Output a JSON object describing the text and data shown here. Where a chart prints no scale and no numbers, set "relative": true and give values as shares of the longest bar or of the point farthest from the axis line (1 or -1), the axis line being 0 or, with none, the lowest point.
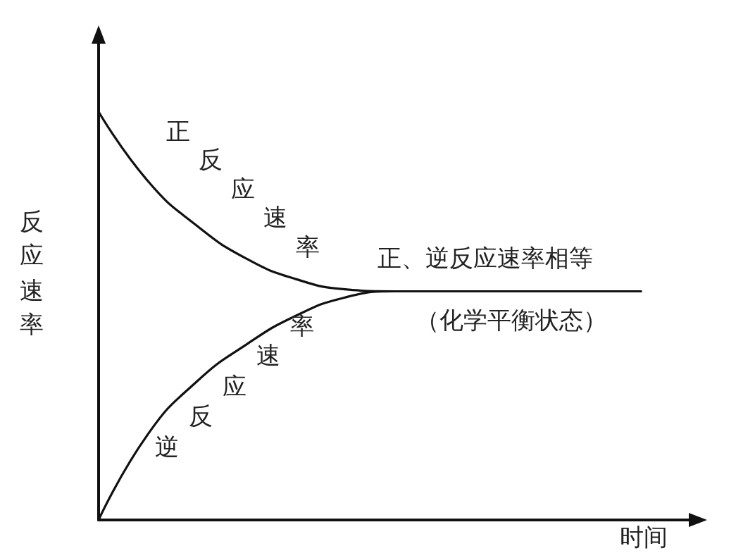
{
  "chart_data": {
    "type": "line",
    "relative": true,
    "xlabel": "时间",
    "ylabel": "反应速率",
    "categories": [
      null,
      null,
      null,
      null,
      null,
      null,
      null,
      null,
      null,
      null,
      null,
      null,
      null
    ],
    "series": [
      {
        "name": "正反应速率",
        "color": "#111111",
        "values": [
          1,
          0.83,
          0.72,
          0.64,
          0.59,
          0.565,
          0.56,
          0.56,
          0.56,
          0.56,
          0.56,
          0.56,
          null
        ]
      },
      {
        "name": "逆反应速率",
        "color": "#111111",
        "values": [
          0,
          0.21,
          0.34,
          0.43,
          0.5,
          0.545,
          0.56,
          0.56,
          0.56,
          0.56,
          0.56,
          0.56,
          null
        ]
      }
    ],
    "annotations": [
      "正、逆反应速率相等",
      "（化学平衡状态）"
    ],
    "grid": false,
    "legend": false,
    "marker": "none",
    "line_style": "solid"
  }
}
